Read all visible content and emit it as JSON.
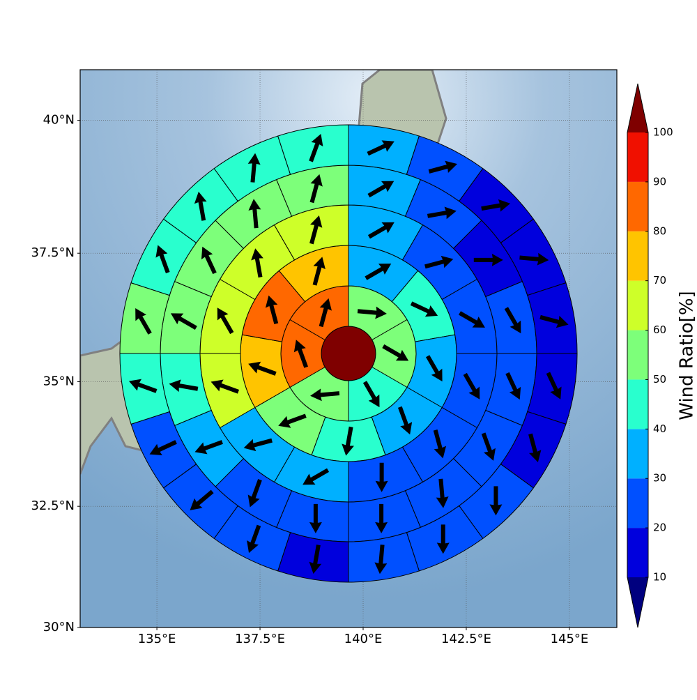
{
  "chart_data": {
    "type": "polar-grid",
    "xlim": [
      133.14,
      146.15
    ],
    "ylim": [
      30,
      40.93
    ],
    "projection": "mercator",
    "grid": true,
    "xticks": [
      {
        "value": 135,
        "label": "135°E"
      },
      {
        "value": 137.5,
        "label": "137.5°E"
      },
      {
        "value": 140,
        "label": "140°E"
      },
      {
        "value": 142.5,
        "label": "142.5°E"
      },
      {
        "value": 145,
        "label": "145°E"
      }
    ],
    "yticks": [
      {
        "value": 30,
        "label": "30°N"
      },
      {
        "value": 32.5,
        "label": "32.5°N"
      },
      {
        "value": 35,
        "label": "35°N"
      },
      {
        "value": 37.5,
        "label": "37.5°N"
      },
      {
        "value": 40,
        "label": "40°N"
      }
    ],
    "center_value": 105,
    "rings": [
      {
        "values": [
          55,
          55,
          45,
          55,
          85,
          85
        ],
        "directions": [
          95,
          120,
          150,
          265,
          340,
          15
        ]
      },
      {
        "values": [
          35,
          45,
          35,
          35,
          45,
          55,
          75,
          85,
          75
        ],
        "directions": [
          60,
          115,
          150,
          160,
          190,
          250,
          290,
          345,
          15
        ]
      },
      {
        "values": [
          35,
          25,
          25,
          25,
          25,
          25,
          35,
          35,
          65,
          65,
          65,
          65
        ],
        "directions": [
          60,
          75,
          120,
          150,
          165,
          180,
          240,
          255,
          290,
          330,
          350,
          15
        ]
      },
      {
        "values": [
          35,
          25,
          15,
          25,
          25,
          25,
          25,
          25,
          25,
          25,
          35,
          45,
          55,
          55,
          55,
          55
        ],
        "directions": [
          60,
          80,
          90,
          150,
          155,
          160,
          175,
          180,
          180,
          200,
          250,
          280,
          300,
          335,
          355,
          15
        ]
      },
      {
        "values": [
          35,
          25,
          15,
          15,
          15,
          15,
          15,
          25,
          25,
          25,
          15,
          25,
          25,
          25,
          45,
          55,
          45,
          45,
          45,
          45
        ],
        "directions": [
          65,
          75,
          80,
          95,
          105,
          155,
          165,
          180,
          180,
          185,
          190,
          200,
          230,
          245,
          290,
          330,
          340,
          350,
          5,
          20
        ]
      }
    ],
    "colorbar": {
      "label": "Wind Ratio[%]",
      "ticks": [
        10,
        20,
        30,
        40,
        50,
        60,
        70,
        80,
        90,
        100
      ],
      "colors": [
        "#0000dd",
        "#0050ff",
        "#00b0ff",
        "#29ffce",
        "#7dff7a",
        "#ceff29",
        "#ffc400",
        "#ff6800",
        "#f01000"
      ],
      "under": "#00007f",
      "over": "#7f0000"
    }
  }
}
